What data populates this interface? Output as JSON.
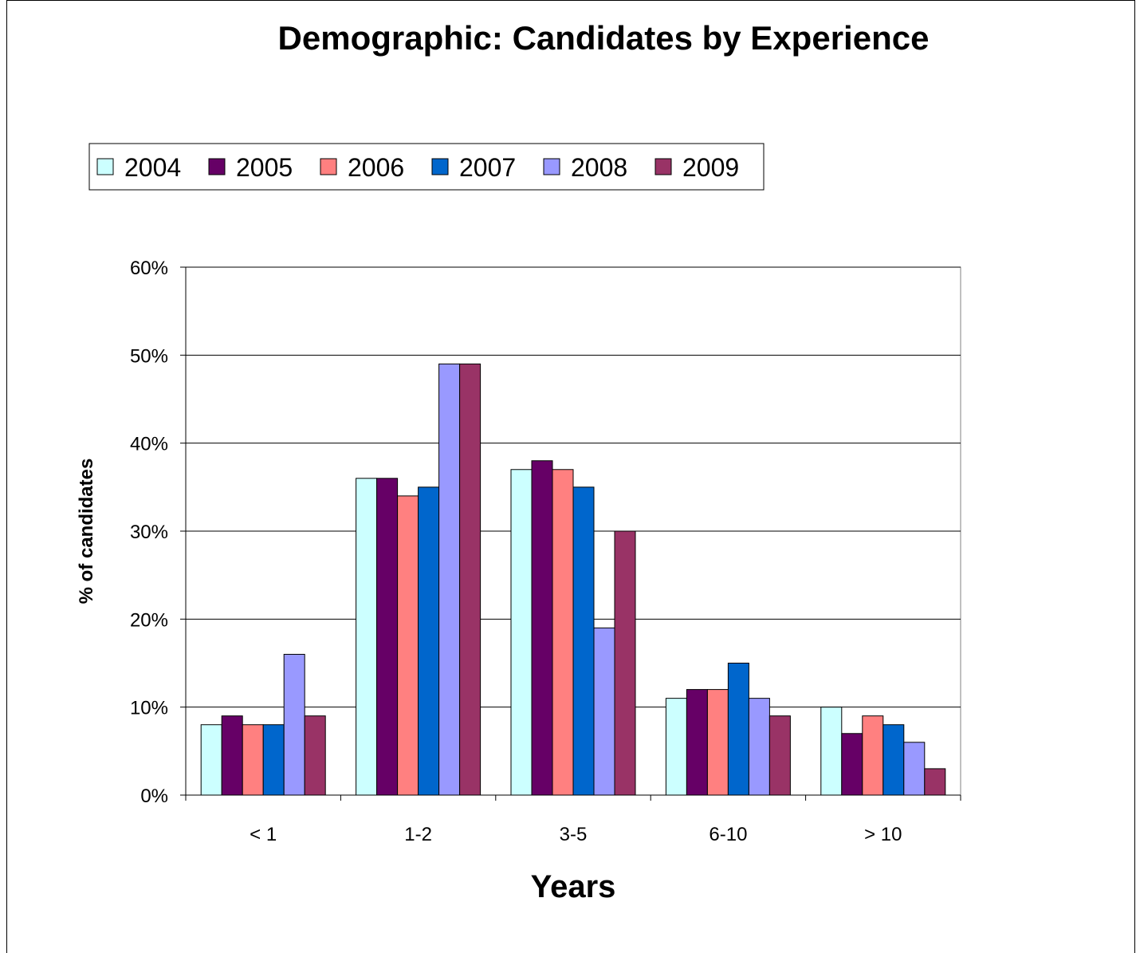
{
  "chart_data": {
    "type": "bar",
    "title": "Demographic: Candidates by Experience",
    "xlabel": "Years",
    "ylabel": "% of candidates",
    "categories": [
      "< 1",
      "1-2",
      "3-5",
      "6-10",
      "> 10"
    ],
    "series": [
      {
        "name": "2004",
        "color": "#CCFFFF",
        "values": [
          8,
          36,
          37,
          11,
          10
        ]
      },
      {
        "name": "2005",
        "color": "#660066",
        "values": [
          9,
          36,
          38,
          12,
          7
        ]
      },
      {
        "name": "2006",
        "color": "#FF8080",
        "values": [
          8,
          34,
          37,
          12,
          9
        ]
      },
      {
        "name": "2007",
        "color": "#0066CC",
        "values": [
          8,
          35,
          35,
          15,
          8
        ]
      },
      {
        "name": "2008",
        "color": "#9999FF",
        "values": [
          16,
          49,
          19,
          11,
          6
        ]
      },
      {
        "name": "2009",
        "color": "#993366",
        "values": [
          9,
          49,
          30,
          9,
          3
        ]
      }
    ],
    "ylim": [
      0,
      60
    ],
    "yticks": [
      "0%",
      "10%",
      "20%",
      "30%",
      "40%",
      "50%",
      "60%"
    ],
    "ytick_values": [
      0,
      10,
      20,
      30,
      40,
      50,
      60
    ],
    "grid": true,
    "legend_position": "top-left"
  }
}
